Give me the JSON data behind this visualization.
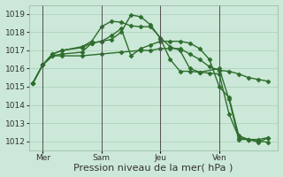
{
  "bg_color": "#cce8d8",
  "grid_color": "#aacfba",
  "line_color": "#2d6e2d",
  "marker": "D",
  "markersize": 2.5,
  "linewidth": 1.0,
  "xlabel": "Pression niveau de la mer( hPa )",
  "xlabel_fontsize": 8,
  "tick_fontsize": 6.5,
  "ylim": [
    1011.5,
    1019.5
  ],
  "yticks": [
    1012,
    1013,
    1014,
    1015,
    1016,
    1017,
    1018,
    1019
  ],
  "vlines_x": [
    1,
    4,
    7,
    10
  ],
  "vlines_labels": [
    "Mer",
    "Sam",
    "Jeu",
    "Ven"
  ],
  "xlim": [
    0.3,
    13.0
  ],
  "series": [
    {
      "x": [
        0.5,
        1.0,
        1.5,
        2.0,
        3.0,
        4.0,
        5.0,
        6.0,
        6.5,
        7.0,
        7.5,
        8.0,
        8.5,
        9.0,
        9.5,
        10.0,
        10.5,
        11.0,
        11.5,
        12.0,
        12.5
      ],
      "y": [
        1015.2,
        1016.2,
        1016.7,
        1016.7,
        1016.7,
        1016.8,
        1016.9,
        1017.0,
        1017.0,
        1017.1,
        1017.1,
        1017.1,
        1016.8,
        1016.5,
        1016.1,
        1015.9,
        1015.85,
        1015.7,
        1015.5,
        1015.4,
        1015.3
      ]
    },
    {
      "x": [
        0.5,
        1.0,
        1.5,
        2.0,
        3.0,
        3.5,
        4.0,
        4.5,
        5.0,
        5.5,
        6.0,
        6.5,
        7.0,
        7.5,
        8.0,
        8.5,
        9.0,
        9.5,
        10.0,
        10.5,
        11.0,
        11.5,
        12.0,
        12.5
      ],
      "y": [
        1015.2,
        1016.2,
        1016.7,
        1016.8,
        1016.9,
        1017.4,
        1017.5,
        1017.8,
        1018.2,
        1016.7,
        1017.1,
        1017.3,
        1017.5,
        1017.5,
        1017.5,
        1017.4,
        1017.1,
        1016.5,
        1015.0,
        1014.4,
        1012.3,
        1012.1,
        1012.1,
        1012.2
      ]
    },
    {
      "x": [
        0.5,
        1.0,
        1.5,
        2.0,
        3.0,
        3.5,
        4.0,
        4.5,
        5.0,
        5.5,
        6.0,
        6.5,
        7.0,
        7.5,
        8.0,
        8.5,
        9.0,
        9.5,
        10.0,
        10.5,
        11.0,
        11.5,
        12.0,
        12.5
      ],
      "y": [
        1015.2,
        1016.2,
        1016.8,
        1017.0,
        1017.2,
        1017.5,
        1018.3,
        1018.6,
        1018.55,
        1018.35,
        1018.3,
        1018.3,
        1017.7,
        1017.2,
        1017.0,
        1016.0,
        1015.8,
        1015.75,
        1015.7,
        1013.5,
        1012.2,
        1012.1,
        1012.0,
        1011.95
      ]
    },
    {
      "x": [
        0.5,
        1.0,
        1.5,
        2.0,
        3.0,
        3.5,
        4.0,
        4.5,
        5.0,
        5.5,
        6.0,
        6.5,
        7.0,
        7.5,
        8.0,
        8.5,
        9.0,
        10.0,
        10.5,
        11.0,
        11.5,
        12.0,
        12.5
      ],
      "y": [
        1015.2,
        1016.2,
        1016.8,
        1017.0,
        1017.15,
        1017.4,
        1017.5,
        1017.6,
        1018.0,
        1018.95,
        1018.85,
        1018.4,
        1017.65,
        1016.5,
        1015.85,
        1015.85,
        1015.8,
        1016.0,
        1014.3,
        1012.1,
        1012.1,
        1011.95,
        1012.2
      ]
    }
  ]
}
